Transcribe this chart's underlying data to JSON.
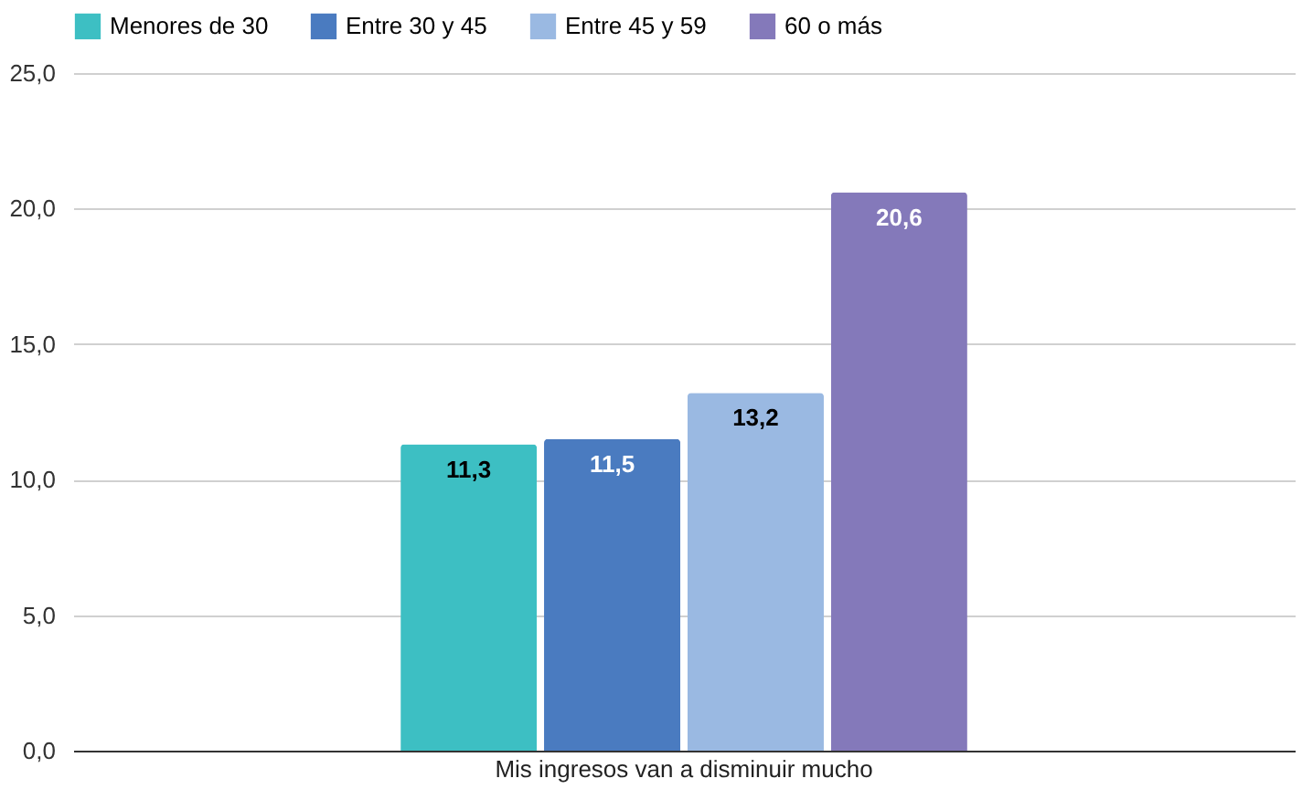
{
  "chart_data": {
    "type": "bar",
    "categories": [
      "Mis ingresos van a disminuir mucho"
    ],
    "series": [
      {
        "name": "Menores de 30",
        "color": "#3dbfc3",
        "values": [
          11.3
        ],
        "value_labels": [
          "11,3"
        ]
      },
      {
        "name": "Entre 30 y 45",
        "color": "#4a7bc0",
        "values": [
          11.5
        ],
        "value_labels": [
          "11,5"
        ]
      },
      {
        "name": "Entre 45 y 59",
        "color": "#9ab9e2",
        "values": [
          13.2
        ],
        "value_labels": [
          "13,2"
        ]
      },
      {
        "name": "60 o más",
        "color": "#8479ba",
        "values": [
          20.6
        ],
        "value_labels": [
          "20,6"
        ]
      }
    ],
    "ylim": [
      0,
      25
    ],
    "yticks": [
      {
        "value": 0,
        "label": "0,0"
      },
      {
        "value": 5,
        "label": "5,0"
      },
      {
        "value": 10,
        "label": "10,0"
      },
      {
        "value": 15,
        "label": "15,0"
      },
      {
        "value": 20,
        "label": "20,0"
      },
      {
        "value": 25,
        "label": "25,0"
      }
    ],
    "grid": "y",
    "legend": "top"
  }
}
